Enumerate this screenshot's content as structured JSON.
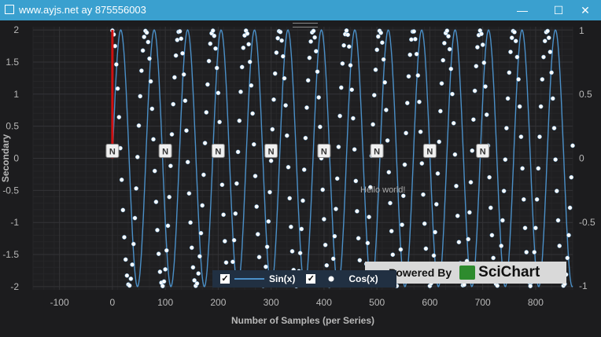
{
  "window": {
    "title": "www.ayjs.net ay 875556003",
    "minimize_glyph": "—",
    "maximize_glyph": "☐",
    "close_glyph": "✕"
  },
  "annotation": {
    "text": "Hello world!"
  },
  "legend": {
    "items": [
      {
        "label": "Sin(x)",
        "checked": true,
        "marker": "line",
        "color": "#4b90c8"
      },
      {
        "label": "Cos(x)",
        "checked": true,
        "marker": "dot",
        "color": "#ffffff"
      }
    ],
    "check_glyph": "✓"
  },
  "watermark": {
    "text": "Powered By",
    "brand": "SciChart"
  },
  "marker_label": "N",
  "chart_data": {
    "type": "line",
    "xlabel": "Number of Samples (per Series)",
    "ylabel": "Secondary",
    "y_right_label": "",
    "xlim": [
      -150,
      870
    ],
    "ylim": [
      -2.05,
      2.05
    ],
    "y_right_lim": [
      -1.03,
      1.03
    ],
    "xticks": [
      -100,
      0,
      100,
      200,
      300,
      400,
      500,
      600,
      700,
      800
    ],
    "yticks": [
      2,
      1.5,
      1,
      0.5,
      0,
      -0.5,
      -1,
      -1.5,
      -2
    ],
    "y_right_ticks": [
      1,
      0.5,
      0,
      -0.5,
      -1
    ],
    "grid": true,
    "series": [
      {
        "name": "Sin(x)",
        "axis": "left",
        "amplitude": 2,
        "period": 63.2,
        "phase_offset": 0,
        "x_start": 0,
        "x_end": 870,
        "color": "#4b90c8"
      },
      {
        "name": "Cos(x)",
        "axis": "right",
        "amplitude": 1,
        "period": 63.2,
        "phase_offset": 0,
        "x_start": 0,
        "x_end": 870,
        "color": "#ffffff"
      }
    ],
    "vertical_marker": {
      "x": 0,
      "y_from": 0,
      "y_to": 2,
      "color": "#d01010"
    },
    "n_markers_x": [
      0,
      100,
      200,
      300,
      400,
      500,
      600,
      700
    ]
  }
}
